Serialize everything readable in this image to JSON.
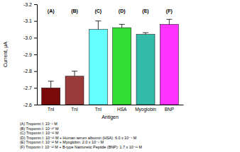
{
  "chart_data": {
    "type": "bar",
    "y_label": "Current, μA",
    "x_label": "Antigen",
    "categories": [
      "TnI",
      "TnI",
      "TnI",
      "HSA",
      "Myoglobin",
      "BNP"
    ],
    "values": [
      -2.7,
      -2.77,
      -3.05,
      -3.06,
      -3.02,
      -3.08
    ],
    "errors": [
      0.04,
      0.03,
      0.05,
      0.02,
      0.01,
      0.03
    ],
    "colors": [
      "#7a0a0a",
      "#9a3a3a",
      "#66ffff",
      "#33dd33",
      "#33bbaa",
      "#ff33ff"
    ],
    "annotations": [
      "(A)",
      "(B)",
      "(C)",
      "(D)",
      "(E)",
      "(F)"
    ],
    "caption_lines": [
      "(A)  Troponin I: 10⁻⁸ M",
      "(B)  Troponin I: 10⁻¹⁰ M",
      "(C)  Troponin I: 10⁻¹² M",
      "(D)  Troponin I: 10⁻¹² M + Human serum albumin (HSA): 6.0 x 10⁻⁴ M",
      "(E)  Troponin I: 10⁻¹² M + Myoglobin: 2.0 x 10⁻⁸ M",
      "(F)  Troponin I: 10⁻¹² M + B-type Natriuretic Peptide (BNP): 1.7 x 10⁻¹¹ M"
    ],
    "ylim": [
      -2.6,
      -3.2
    ],
    "yticks": [
      -2.6,
      -2.7,
      -2.8,
      -2.9,
      {
        "value": -3,
        "label": "-3.0"
      },
      -3.1,
      -3.2
    ],
    "grid": false
  }
}
